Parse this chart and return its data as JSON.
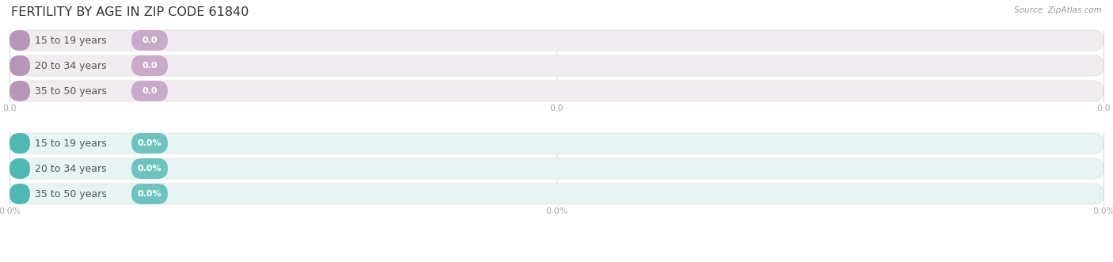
{
  "title": "FERTILITY BY AGE IN ZIP CODE 61840",
  "source": "Source: ZipAtlas.com",
  "categories": [
    "15 to 19 years",
    "20 to 34 years",
    "35 to 50 years"
  ],
  "top_values": [
    "0.0",
    "0.0",
    "0.0"
  ],
  "bottom_values": [
    "0.0%",
    "0.0%",
    "0.0%"
  ],
  "top_bar_bg": "#f0ecf0",
  "top_cap_color": "#b896b8",
  "top_badge_color": "#c9aac9",
  "bottom_bar_bg": "#e8f4f3",
  "bottom_cap_color": "#4eb8b2",
  "bottom_badge_color": "#6dc4be",
  "tick_color": "#aaaaaa",
  "label_color": "#555555",
  "title_color": "#333333",
  "source_color": "#999999",
  "bar_edge_color": "#dddddd",
  "grid_line_color": "#cccccc",
  "background_color": "#ffffff",
  "title_fontsize": 11.5,
  "label_fontsize": 9,
  "badge_fontsize": 8,
  "tick_fontsize": 8,
  "source_fontsize": 7.5
}
